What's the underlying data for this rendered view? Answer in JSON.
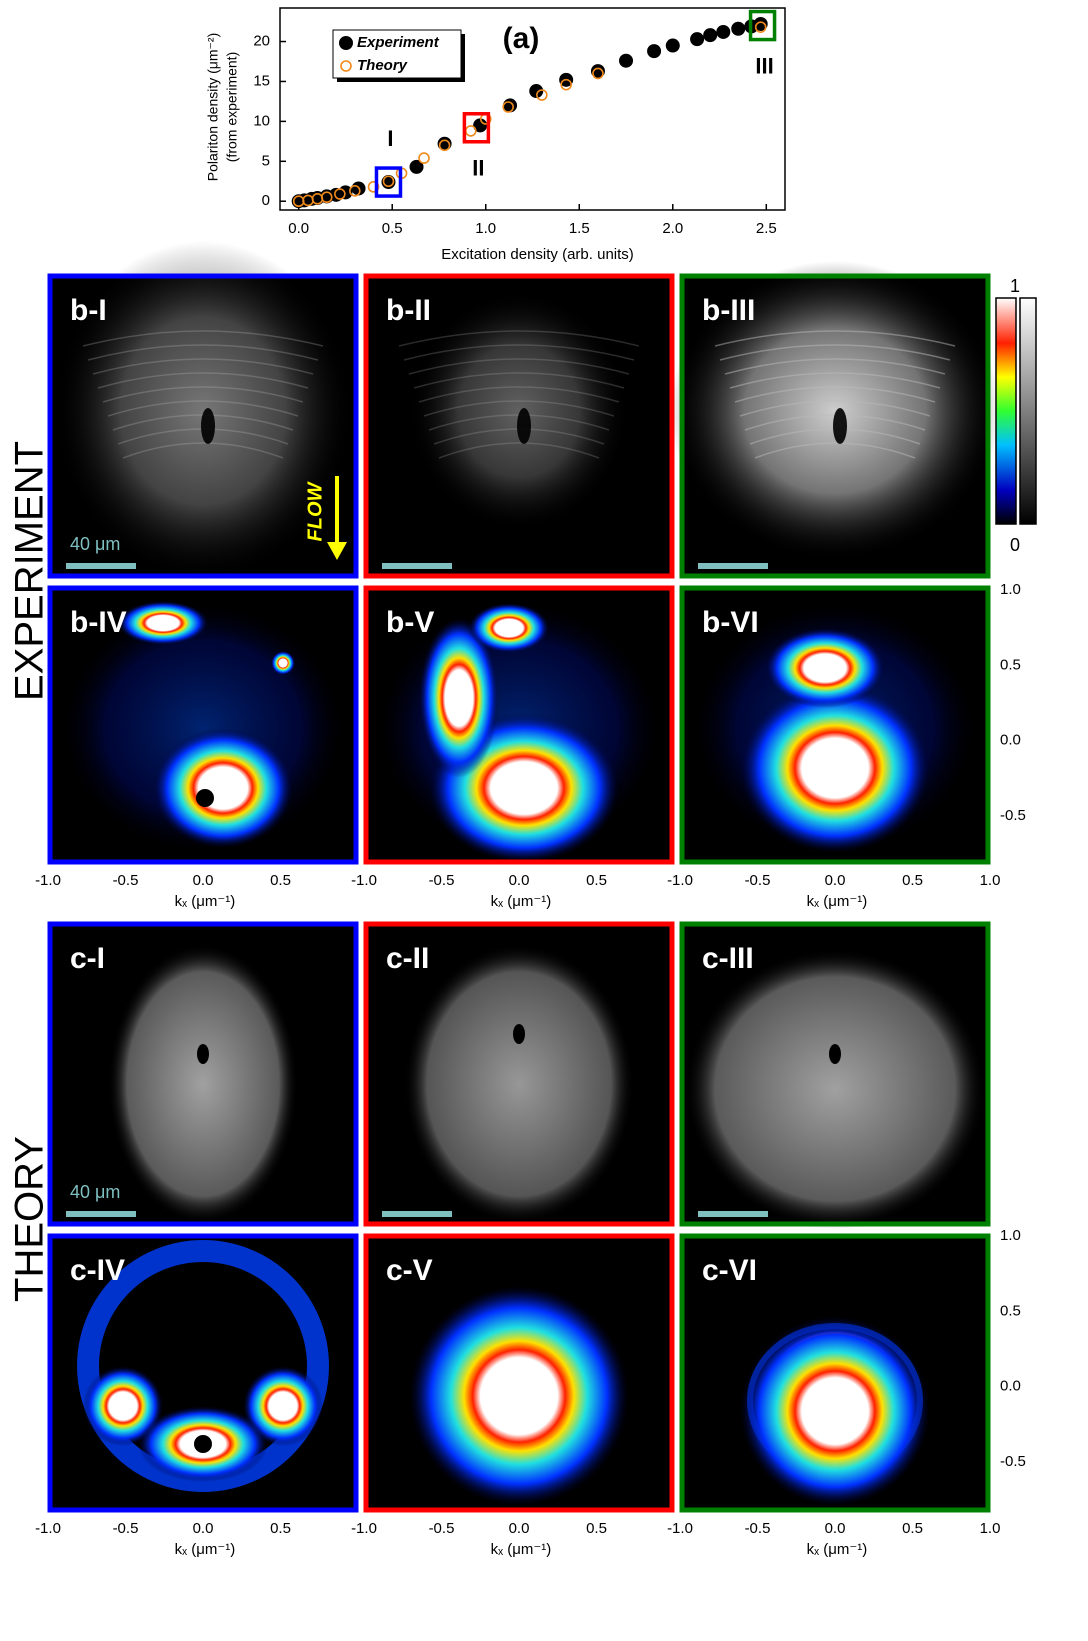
{
  "chart_data": {
    "type": "scatter",
    "title": "(a)",
    "xlabel": "Excitation density (arb. units)",
    "ylabel": "Polariton density (μm⁻²)",
    "ylabel2": "(from experiment)",
    "xlim": [
      -0.1,
      2.6
    ],
    "ylim": [
      -1.1,
      24.2
    ],
    "xticks": [
      {
        "value": 0,
        "label": "0.0"
      },
      {
        "value": 0.5,
        "label": "0.5"
      },
      {
        "value": 1,
        "label": "1.0"
      },
      {
        "value": 1.5,
        "label": "1.5"
      },
      {
        "value": 2,
        "label": "2.0"
      },
      {
        "value": 2.5,
        "label": "2.5"
      }
    ],
    "yticks": [
      0,
      5,
      10,
      15,
      20
    ],
    "legend": "upper left",
    "series": [
      {
        "name": "Experiment",
        "color": "#000000",
        "marker": "filled",
        "x": [
          0,
          0.03,
          0.07,
          0.1,
          0.15,
          0.2,
          0.25,
          0.32,
          0.48,
          0.63,
          0.78,
          0.97,
          1.13,
          1.27,
          1.43,
          1.6,
          1.75,
          1.9,
          2.0,
          2.13,
          2.2,
          2.27,
          2.35,
          2.42,
          2.47
        ],
        "values": [
          0,
          0.1,
          0.3,
          0.4,
          0.6,
          0.8,
          1.1,
          1.6,
          2.4,
          4.3,
          7.2,
          9.5,
          12,
          13.8,
          15.2,
          16.3,
          17.6,
          18.8,
          19.5,
          20.3,
          20.8,
          21.2,
          21.6,
          21.9,
          22.2
        ]
      },
      {
        "name": "Theory",
        "color": "#f08a1c",
        "marker": "open",
        "x": [
          0,
          0.05,
          0.1,
          0.15,
          0.22,
          0.3,
          0.4,
          0.48,
          0.55,
          0.67,
          0.78,
          0.92,
          1.0,
          1.12,
          1.3,
          1.43,
          1.6,
          2.47
        ],
        "values": [
          0,
          0.1,
          0.3,
          0.5,
          0.9,
          1.3,
          1.8,
          2.5,
          3.5,
          5.4,
          7.0,
          8.8,
          10.3,
          11.8,
          13.3,
          14.6,
          16.0,
          21.8
        ]
      }
    ],
    "annotations": [
      {
        "text": "I",
        "x": 0.48,
        "y": 2.4,
        "color": "#0000ff",
        "side": "above"
      },
      {
        "text": "II",
        "x": 0.95,
        "y": 9.2,
        "color": "#ff0000",
        "side": "below"
      },
      {
        "text": "III",
        "x": 2.48,
        "y": 22,
        "color": "#008000",
        "side": "below"
      }
    ]
  },
  "experiment": {
    "label": "EXPERIMENT",
    "panels": [
      "b-I",
      "b-II",
      "b-III",
      "b-IV",
      "b-V",
      "b-VI"
    ]
  },
  "theory": {
    "label": "THEORY",
    "panels": [
      "c-I",
      "c-II",
      "c-III",
      "c-IV",
      "c-V",
      "c-VI"
    ]
  },
  "scale_bar": "40 μm",
  "flow": "FLOW",
  "colorbar": {
    "max": 1,
    "min": 0
  },
  "k_axes": {
    "x_ticks": [
      "-1.0",
      "-0.5",
      "0.0",
      "0.5",
      "1.0"
    ],
    "y_ticks": [
      "1.0",
      "0.5",
      "0.0",
      "-0.5"
    ],
    "x_label": "kₓ (μm⁻¹)"
  }
}
